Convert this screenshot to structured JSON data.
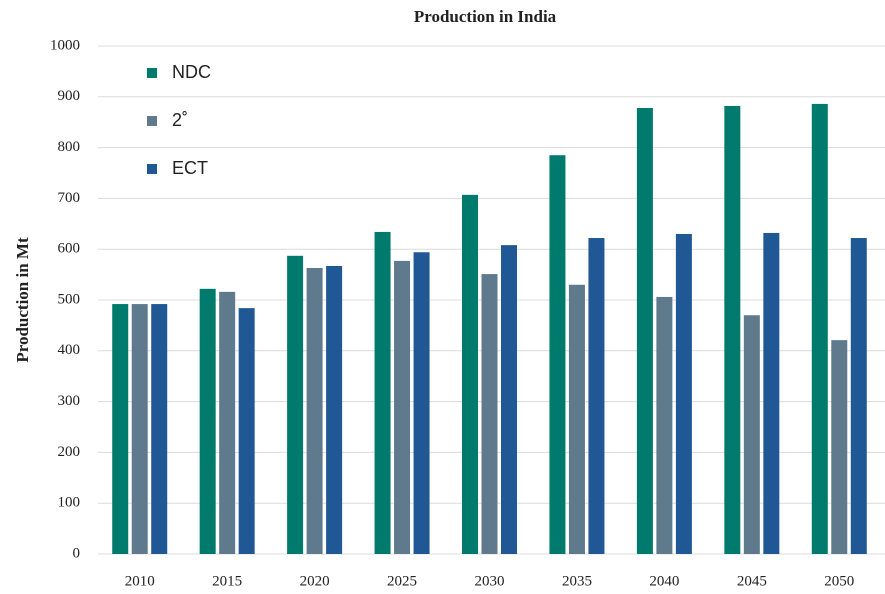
{
  "chart_data": {
    "type": "bar",
    "title": "Production in India",
    "y_label": "Production in Mt",
    "categories": [
      "2010",
      "2015",
      "2020",
      "2025",
      "2030",
      "2035",
      "2040",
      "2045",
      "2050"
    ],
    "series": [
      {
        "name": "NDC",
        "color": "#007a6c",
        "values": [
          492,
          522,
          587,
          634,
          707,
          785,
          878,
          882,
          886
        ]
      },
      {
        "name": "2˚",
        "color": "#5f7a8c",
        "values": [
          492,
          516,
          563,
          577,
          551,
          530,
          506,
          470,
          421
        ]
      },
      {
        "name": "ECT",
        "color": "#1f5894",
        "values": [
          492,
          484,
          567,
          594,
          608,
          622,
          630,
          632,
          622
        ]
      }
    ],
    "ylim": [
      0,
      1000
    ],
    "yticks": [
      0,
      100,
      200,
      300,
      400,
      500,
      600,
      700,
      800,
      900,
      1000
    ],
    "grid": true,
    "legend": "upper left"
  }
}
